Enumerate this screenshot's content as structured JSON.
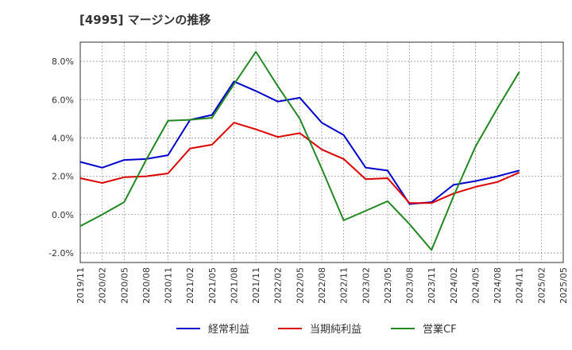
{
  "chart_data": {
    "type": "line",
    "title": "[4995]  マージンの推移",
    "x": [
      "2019/11",
      "2020/02",
      "2020/05",
      "2020/08",
      "2020/11",
      "2021/02",
      "2021/05",
      "2021/08",
      "2021/11",
      "2022/02",
      "2022/05",
      "2022/08",
      "2022/11",
      "2023/02",
      "2023/05",
      "2023/08",
      "2023/11",
      "2024/02",
      "2024/05",
      "2024/08",
      "2024/11",
      "2025/02",
      "2025/05"
    ],
    "ylim": [
      -2.5,
      9.0
    ],
    "yticks": [
      -2.0,
      0.0,
      2.0,
      4.0,
      6.0,
      8.0
    ],
    "ytick_labels": [
      "-2.0%",
      "0.0%",
      "2.0%",
      "4.0%",
      "6.0%",
      "8.0%"
    ],
    "grid": true,
    "legend_position": "bottom",
    "series": [
      {
        "name": "経常利益",
        "color": "#0000cc",
        "values": [
          2.75,
          2.45,
          2.85,
          2.9,
          3.1,
          4.95,
          5.2,
          6.95,
          6.45,
          5.9,
          6.1,
          4.8,
          4.15,
          2.45,
          2.3,
          0.55,
          0.65,
          1.55,
          1.75,
          2.0,
          2.3,
          null,
          null
        ]
      },
      {
        "name": "当期純利益",
        "color": "#dd0000",
        "values": [
          1.9,
          1.65,
          1.95,
          2.0,
          2.15,
          3.45,
          3.65,
          4.8,
          4.45,
          4.05,
          4.25,
          3.4,
          2.9,
          1.85,
          1.9,
          0.6,
          0.6,
          1.1,
          1.45,
          1.7,
          2.2,
          null,
          null
        ]
      },
      {
        "name": "営業CF",
        "color": "#228822",
        "values": [
          -0.6,
          0.0,
          0.65,
          2.85,
          4.9,
          4.95,
          5.05,
          6.8,
          8.5,
          6.7,
          5.0,
          2.4,
          -0.3,
          0.2,
          0.7,
          -0.5,
          -1.85,
          0.95,
          3.55,
          5.55,
          7.45,
          null,
          null
        ]
      }
    ]
  }
}
